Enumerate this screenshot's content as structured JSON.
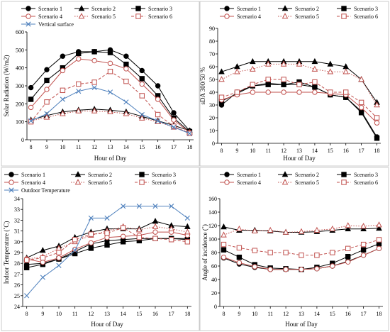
{
  "chart_data": [
    {
      "type": "line",
      "ylabel": "Solar Radiation (W/m2)",
      "xlabel": "Hour of Day",
      "x": [
        8,
        9,
        10,
        11,
        12,
        13,
        14,
        15,
        16,
        17,
        18
      ],
      "ylim": [
        0,
        600
      ],
      "yticks": [
        0,
        100,
        200,
        300,
        400,
        500,
        600
      ],
      "grid": false,
      "legend": "top",
      "series": [
        {
          "name": "Scenario 1",
          "color": "#000000",
          "marker": "circle-filled",
          "dash": "solid",
          "values": [
            290,
            390,
            465,
            490,
            490,
            500,
            465,
            385,
            300,
            150,
            50
          ]
        },
        {
          "name": "Scenario 2",
          "color": "#000000",
          "marker": "triangle-filled",
          "dash": "solid",
          "values": [
            110,
            135,
            155,
            165,
            170,
            165,
            155,
            130,
            105,
            80,
            50
          ]
        },
        {
          "name": "Scenario 3",
          "color": "#000000",
          "marker": "square-filled",
          "dash": "solid",
          "values": [
            225,
            330,
            400,
            480,
            490,
            485,
            420,
            340,
            245,
            120,
            45
          ]
        },
        {
          "name": "Scenario 4",
          "color": "#c0504d",
          "marker": "circle-open",
          "dash": "solid",
          "values": [
            180,
            280,
            385,
            450,
            440,
            425,
            395,
            310,
            225,
            110,
            40
          ]
        },
        {
          "name": "Scenario 5",
          "color": "#c0504d",
          "marker": "triangle-open",
          "dash": "dotted",
          "values": [
            105,
            125,
            145,
            160,
            160,
            155,
            145,
            120,
            100,
            70,
            40
          ]
        },
        {
          "name": "Scenario 6",
          "color": "#c0504d",
          "marker": "square-open",
          "dash": "dashed",
          "values": [
            100,
            210,
            275,
            310,
            320,
            380,
            325,
            245,
            140,
            75,
            35
          ]
        },
        {
          "name": "Vertical surface",
          "color": "#4f81bd",
          "marker": "x",
          "dash": "solid",
          "values": [
            105,
            145,
            225,
            270,
            290,
            265,
            210,
            140,
            105,
            70,
            35
          ]
        }
      ]
    },
    {
      "type": "line",
      "ylabel": "sDA 300/50 %",
      "xlabel": "Hour of Day",
      "x": [
        8,
        9,
        10,
        11,
        12,
        13,
        14,
        15,
        16,
        17,
        18
      ],
      "ylim": [
        0,
        90
      ],
      "yticks": [
        0,
        10,
        20,
        30,
        40,
        50,
        60,
        70,
        80,
        90
      ],
      "grid": false,
      "legend": "top",
      "series": [
        {
          "name": "Scenario 1",
          "color": "#000000",
          "marker": "circle-filled",
          "dash": "solid",
          "values": [
            30,
            40,
            45,
            47,
            46,
            46,
            44,
            38,
            36,
            25,
            5
          ]
        },
        {
          "name": "Scenario 2",
          "color": "#000000",
          "marker": "triangle-filled",
          "dash": "solid",
          "values": [
            56,
            60,
            64,
            64,
            64,
            64,
            64,
            62,
            60,
            50,
            32
          ]
        },
        {
          "name": "Scenario 3",
          "color": "#000000",
          "marker": "square-filled",
          "dash": "solid",
          "values": [
            33,
            39,
            45,
            46,
            46,
            48,
            44,
            38,
            36,
            24,
            4
          ]
        },
        {
          "name": "Scenario 4",
          "color": "#c0504d",
          "marker": "circle-open",
          "dash": "solid",
          "values": [
            34,
            38,
            40,
            40,
            40,
            40,
            40,
            39,
            38,
            28,
            16
          ]
        },
        {
          "name": "Scenario 5",
          "color": "#c0504d",
          "marker": "triangle-open",
          "dash": "dotted",
          "values": [
            50,
            56,
            58,
            62,
            62,
            62,
            58,
            56,
            56,
            50,
            30
          ]
        },
        {
          "name": "Scenario 6",
          "color": "#c0504d",
          "marker": "square-open",
          "dash": "dashed",
          "values": [
            36,
            40,
            46,
            50,
            50,
            46,
            48,
            40,
            40,
            32,
            20
          ]
        }
      ]
    },
    {
      "type": "line",
      "ylabel": "Indoor Temperature (˚C)",
      "xlabel": "Hour of Day",
      "x": [
        8,
        9,
        10,
        11,
        12,
        13,
        14,
        15,
        16,
        17,
        18
      ],
      "ylim": [
        24,
        34
      ],
      "yticks": [
        24,
        25,
        26,
        27,
        28,
        29,
        30,
        31,
        32,
        33,
        34
      ],
      "grid": false,
      "legend": "top",
      "series": [
        {
          "name": "Scenario 1",
          "color": "#000000",
          "marker": "circle-filled",
          "dash": "solid",
          "values": [
            27.9,
            28.0,
            28.4,
            29.1,
            29.8,
            30.1,
            30.2,
            30.3,
            30.3,
            30.3,
            30.3
          ]
        },
        {
          "name": "Scenario 2",
          "color": "#000000",
          "marker": "triangle-filled",
          "dash": "solid",
          "values": [
            28.5,
            29.2,
            29.6,
            30.4,
            30.9,
            31.2,
            31.2,
            31.2,
            31.9,
            31.5,
            31.4
          ]
        },
        {
          "name": "Scenario 3",
          "color": "#000000",
          "marker": "square-filled",
          "dash": "solid",
          "values": [
            27.6,
            27.9,
            28.4,
            28.9,
            29.4,
            29.7,
            30.0,
            30.1,
            30.3,
            30.3,
            30.2
          ]
        },
        {
          "name": "Scenario 4",
          "color": "#c0504d",
          "marker": "circle-open",
          "dash": "solid",
          "values": [
            28.4,
            28.1,
            28.5,
            29.3,
            29.9,
            30.4,
            30.5,
            30.6,
            30.9,
            30.9,
            30.6
          ]
        },
        {
          "name": "Scenario 5",
          "color": "#c0504d",
          "marker": "triangle-open",
          "dash": "dotted",
          "values": [
            28.4,
            28.6,
            29.4,
            30.0,
            30.6,
            31.0,
            31.4,
            31.1,
            31.4,
            31.2,
            30.9
          ]
        },
        {
          "name": "Scenario 6",
          "color": "#c0504d",
          "marker": "square-open",
          "dash": "dashed",
          "values": [
            28.3,
            28.5,
            29.0,
            30.2,
            30.7,
            30.8,
            31.3,
            30.4,
            30.3,
            30.2,
            30.0
          ]
        },
        {
          "name": "Outdoor Temperature",
          "color": "#4f81bd",
          "marker": "x",
          "dash": "solid",
          "values": [
            25.0,
            26.7,
            27.8,
            29.2,
            32.2,
            32.2,
            33.3,
            33.3,
            33.3,
            33.3,
            32.2
          ]
        }
      ]
    },
    {
      "type": "line",
      "ylabel": "Angle of incidence (˚)",
      "xlabel": "Hour of Day",
      "x": [
        8,
        9,
        10,
        11,
        12,
        13,
        14,
        15,
        16,
        17,
        18
      ],
      "ylim": [
        0,
        160
      ],
      "yticks": [
        0,
        20,
        40,
        60,
        80,
        100,
        120,
        140,
        160
      ],
      "grid": false,
      "legend": "top",
      "series": [
        {
          "name": "Scenario 1",
          "color": "#000000",
          "marker": "circle-filled",
          "dash": "solid",
          "values": [
            72,
            63,
            58,
            55,
            55,
            55,
            56,
            60,
            67,
            76,
            86
          ]
        },
        {
          "name": "Scenario 2",
          "color": "#000000",
          "marker": "triangle-filled",
          "dash": "solid",
          "values": [
            118,
            113,
            113,
            112,
            110,
            110,
            111,
            113,
            115,
            115,
            116
          ]
        },
        {
          "name": "Scenario 3",
          "color": "#000000",
          "marker": "square-filled",
          "dash": "solid",
          "values": [
            84,
            73,
            62,
            57,
            56,
            55,
            58,
            64,
            74,
            84,
            93
          ]
        },
        {
          "name": "Scenario 4",
          "color": "#c0504d",
          "marker": "circle-open",
          "dash": "solid",
          "values": [
            73,
            65,
            59,
            55,
            55,
            55,
            56,
            60,
            66,
            76,
            86
          ]
        },
        {
          "name": "Scenario 5",
          "color": "#c0504d",
          "marker": "triangle-open",
          "dash": "dotted",
          "values": [
            106,
            115,
            112,
            113,
            110,
            111,
            113,
            115,
            120,
            119,
            121
          ]
        },
        {
          "name": "Scenario 6",
          "color": "#c0504d",
          "marker": "square-open",
          "dash": "dashed",
          "values": [
            92,
            87,
            83,
            80,
            80,
            76,
            76,
            80,
            86,
            92,
            99
          ]
        }
      ]
    }
  ]
}
